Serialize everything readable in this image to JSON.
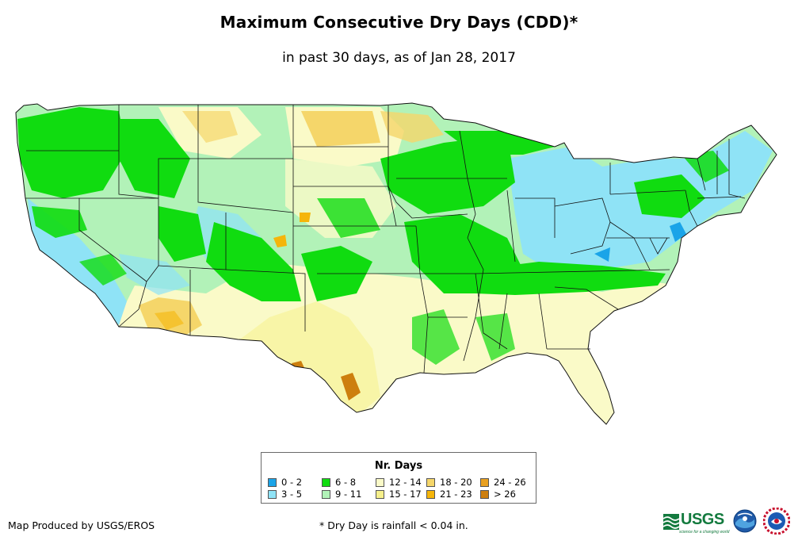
{
  "title": "Maximum Consecutive Dry Days (CDD)*",
  "subtitle": "in past 30 days, as of Jan 28, 2017",
  "legend": {
    "title": "Nr. Days",
    "items": [
      {
        "label": "0 - 2",
        "color": "#1aa4e8"
      },
      {
        "label": "3 - 5",
        "color": "#8fe3f6"
      },
      {
        "label": "6 - 8",
        "color": "#10dc10"
      },
      {
        "label": "9 - 11",
        "color": "#b2f2b8"
      },
      {
        "label": "12 - 14",
        "color": "#fafac8"
      },
      {
        "label": "15 - 17",
        "color": "#f6f08c"
      },
      {
        "label": "18 - 20",
        "color": "#f5d66a"
      },
      {
        "label": "21 - 23",
        "color": "#f5b50a"
      },
      {
        "label": "24 - 26",
        "color": "#e8a020"
      },
      {
        "label": "> 26",
        "color": "#cd7f0e"
      }
    ]
  },
  "footer": {
    "credit": "Map Produced by USGS/EROS",
    "note": "* Dry Day is rainfall < 0.04 in."
  },
  "logos": {
    "usgs": "USGS",
    "usgs_tagline": "science for a changing world"
  }
}
